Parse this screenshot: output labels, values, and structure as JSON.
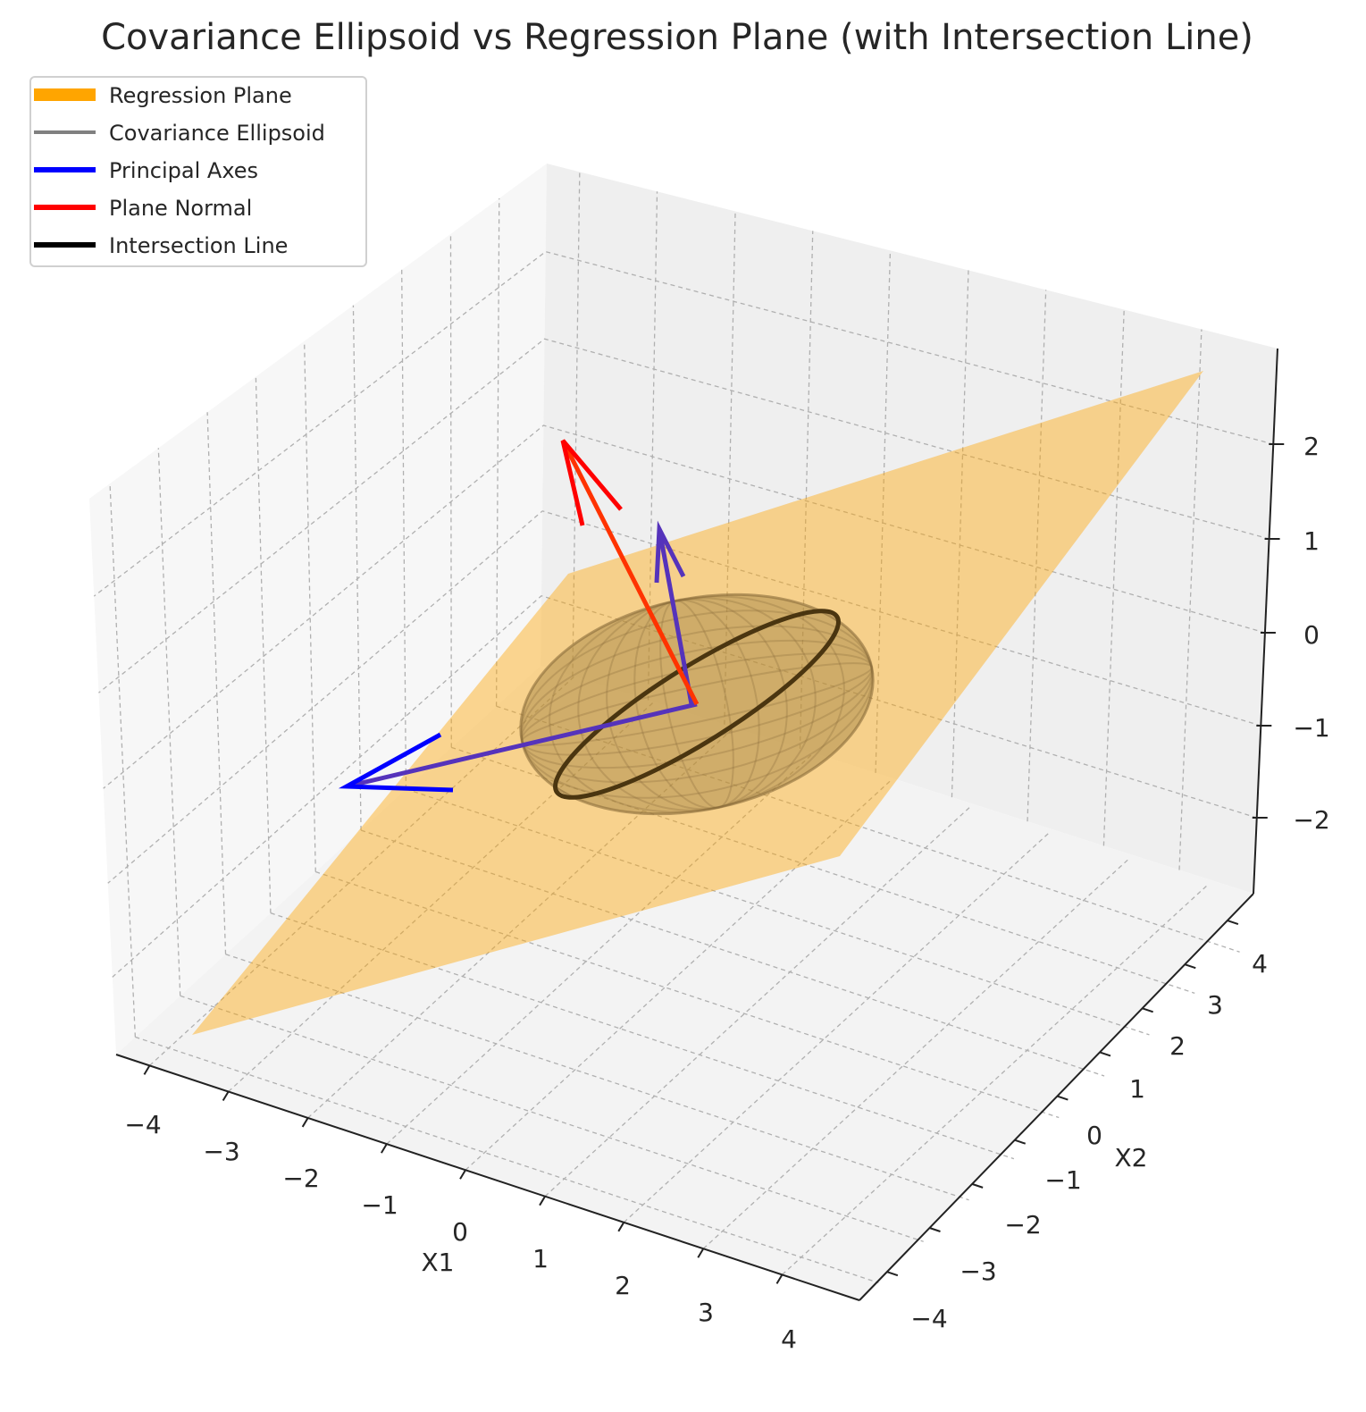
{
  "chart_data": {
    "type": "3d-surface",
    "title": "Covariance Ellipsoid vs Regression Plane (with Intersection Line)",
    "xlabel": "X1",
    "ylabel": "X2",
    "zlabel": "",
    "xlim": [
      -4.5,
      4.5
    ],
    "ylim": [
      -4.5,
      4.5
    ],
    "zlim": [
      -2.8,
      2.8
    ],
    "x_ticks": [
      "−4",
      "−3",
      "−2",
      "−1",
      "0",
      "1",
      "2",
      "3",
      "4"
    ],
    "y_ticks": [
      "−4",
      "−3",
      "−2",
      "−1",
      "0",
      "1",
      "2",
      "3",
      "4"
    ],
    "z_ticks": [
      "2",
      "1",
      "0",
      "−1",
      "−2"
    ],
    "grid": true,
    "legend_position": "top-left",
    "legend": [
      {
        "label": "Regression Plane",
        "color": "#ffa500"
      },
      {
        "label": "Covariance Ellipsoid",
        "color": "#808080"
      },
      {
        "label": "Principal Axes",
        "color": "#0000ff"
      },
      {
        "label": "Plane Normal",
        "color": "#ff0000"
      },
      {
        "label": "Intersection Line",
        "color": "#000000"
      }
    ]
  }
}
